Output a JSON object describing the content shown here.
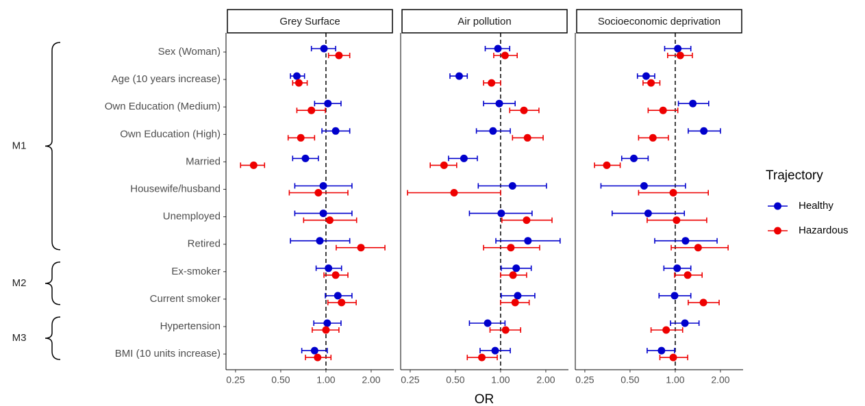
{
  "chart_data": {
    "type": "forest",
    "x_label": "OR",
    "xscale": "log",
    "xlim": [
      0.216,
      2.83
    ],
    "xticks": [
      0.25,
      {
        "value": 0.5,
        "label": "0.50"
      },
      {
        "value": 1,
        "label": "1.00"
      },
      {
        "value": 2,
        "label": "2.00"
      }
    ],
    "refline": 1,
    "legend_title": "Trajectory",
    "legend_position": "right",
    "categories": [
      "Sex (Woman)",
      "Age (10 years increase)",
      "Own Education (Medium)",
      "Own Education (High)",
      "Married",
      "Housewife/husband",
      "Unemployed",
      "Retired",
      "Ex-smoker",
      "Current smoker",
      "Hypertension",
      "BMI (10 units increase)"
    ],
    "groups": [
      {
        "label": "M1",
        "count": 8
      },
      {
        "label": "M2",
        "count": 2
      },
      {
        "label": "M3",
        "count": 2
      }
    ],
    "panels": [
      {
        "title": "Grey Surface",
        "series": [
          {
            "name": "Healthy",
            "color": "#0000cc",
            "values": [
              0.97,
              0.64,
              1.03,
              1.16,
              0.73,
              0.96,
              0.96,
              0.91,
              1.04,
              1.2,
              1.02,
              0.84
            ],
            "lower": [
              0.8,
              0.58,
              0.84,
              0.94,
              0.6,
              0.62,
              0.62,
              0.58,
              0.86,
              0.99,
              0.83,
              0.69
            ],
            "upper": [
              1.16,
              0.72,
              1.26,
              1.44,
              0.89,
              1.49,
              1.49,
              1.44,
              1.27,
              1.49,
              1.26,
              1.02
            ]
          },
          {
            "name": "Hazardous",
            "color": "#ee0000",
            "values": [
              1.22,
              0.66,
              0.8,
              0.68,
              0.33,
              0.89,
              1.06,
              1.71,
              1.16,
              1.27,
              1.0,
              0.88
            ],
            "lower": [
              1.04,
              0.6,
              0.64,
              0.56,
              0.27,
              0.57,
              0.71,
              1.17,
              0.97,
              1.03,
              0.81,
              0.73
            ],
            "upper": [
              1.44,
              0.75,
              0.99,
              0.84,
              0.39,
              1.4,
              1.6,
              2.47,
              1.4,
              1.59,
              1.22,
              1.08
            ]
          }
        ]
      },
      {
        "title": "Air pollution",
        "series": [
          {
            "name": "Healthy",
            "color": "#0000cc",
            "values": [
              0.96,
              0.53,
              0.98,
              0.89,
              0.57,
              1.2,
              1.01,
              1.52,
              1.27,
              1.3,
              0.82,
              0.92
            ],
            "lower": [
              0.79,
              0.46,
              0.77,
              0.69,
              0.45,
              0.71,
              0.62,
              0.93,
              1.01,
              1.01,
              0.62,
              0.73
            ],
            "upper": [
              1.15,
              0.6,
              1.25,
              1.16,
              0.7,
              2.02,
              1.62,
              2.49,
              1.6,
              1.69,
              1.07,
              1.16
            ]
          },
          {
            "name": "Hazardous",
            "color": "#ee0000",
            "values": [
              1.07,
              0.87,
              1.43,
              1.51,
              0.42,
              0.49,
              1.49,
              1.17,
              1.21,
              1.25,
              1.08,
              0.75
            ],
            "lower": [
              0.9,
              0.77,
              1.15,
              1.2,
              0.34,
              0.24,
              1.02,
              0.77,
              1.0,
              1.0,
              0.85,
              0.6
            ],
            "upper": [
              1.29,
              1.0,
              1.8,
              1.92,
              0.51,
              1.0,
              2.2,
              1.82,
              1.49,
              1.55,
              1.36,
              0.95
            ]
          }
        ]
      },
      {
        "title": "Socioeconomic deprivation",
        "series": [
          {
            "name": "Healthy",
            "color": "#0000cc",
            "values": [
              1.04,
              0.64,
              1.31,
              1.55,
              0.53,
              0.62,
              0.66,
              1.17,
              1.03,
              0.99,
              1.16,
              0.81
            ],
            "lower": [
              0.85,
              0.56,
              1.05,
              1.22,
              0.44,
              0.32,
              0.38,
              0.73,
              0.84,
              0.78,
              0.93,
              0.65
            ],
            "upper": [
              1.27,
              0.73,
              1.67,
              2.0,
              0.66,
              1.17,
              1.15,
              1.9,
              1.27,
              1.27,
              1.44,
              0.99
            ]
          },
          {
            "name": "Hazardous",
            "color": "#ee0000",
            "values": [
              1.08,
              0.69,
              0.83,
              0.71,
              0.35,
              0.97,
              1.02,
              1.42,
              1.21,
              1.54,
              0.87,
              0.97
            ],
            "lower": [
              0.89,
              0.61,
              0.66,
              0.57,
              0.29,
              0.57,
              0.65,
              0.94,
              0.99,
              1.22,
              0.69,
              0.79
            ],
            "upper": [
              1.3,
              0.79,
              1.04,
              0.9,
              0.43,
              1.66,
              1.62,
              2.25,
              1.51,
              1.96,
              1.12,
              1.21
            ]
          }
        ]
      }
    ]
  }
}
